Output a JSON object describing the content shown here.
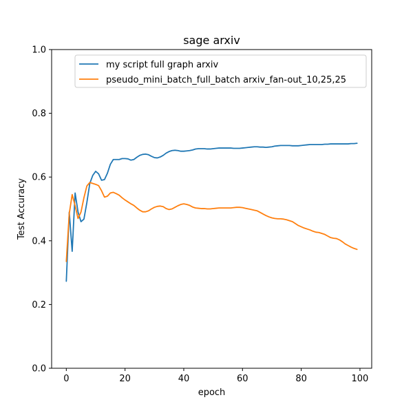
{
  "chart_data": {
    "type": "line",
    "title": "sage arxiv",
    "xlabel": "epoch",
    "ylabel": "Test Accuracy",
    "xlim": [
      -5,
      104
    ],
    "ylim": [
      0.0,
      1.0
    ],
    "xticks": [
      0,
      20,
      40,
      60,
      80,
      100
    ],
    "xtick_labels": [
      "0",
      "20",
      "40",
      "60",
      "80",
      "100"
    ],
    "yticks": [
      0.0,
      0.2,
      0.4,
      0.6,
      0.8,
      1.0
    ],
    "ytick_labels": [
      "0.0",
      "0.2",
      "0.4",
      "0.6",
      "0.8",
      "1.0"
    ],
    "grid": false,
    "legend_position": "top-right",
    "series": [
      {
        "name": "my script full graph arxiv",
        "color": "#1f77b4",
        "x": [
          0,
          1,
          2,
          3,
          4,
          5,
          6,
          7,
          8,
          9,
          10,
          11,
          12,
          13,
          14,
          15,
          16,
          17,
          18,
          19,
          20,
          21,
          22,
          23,
          24,
          25,
          26,
          27,
          28,
          29,
          30,
          31,
          32,
          33,
          34,
          35,
          36,
          37,
          38,
          39,
          40,
          41,
          42,
          43,
          44,
          45,
          46,
          47,
          48,
          49,
          50,
          51,
          52,
          53,
          54,
          55,
          56,
          57,
          58,
          59,
          60,
          61,
          62,
          63,
          64,
          65,
          66,
          67,
          68,
          69,
          70,
          71,
          72,
          73,
          74,
          75,
          76,
          77,
          78,
          79,
          80,
          81,
          82,
          83,
          84,
          85,
          86,
          87,
          88,
          89,
          90,
          91,
          92,
          93,
          94,
          95,
          96,
          97,
          98,
          99
        ],
        "y": [
          0.273,
          0.49,
          0.367,
          0.55,
          0.49,
          0.46,
          0.468,
          0.52,
          0.58,
          0.605,
          0.618,
          0.61,
          0.59,
          0.592,
          0.612,
          0.64,
          0.655,
          0.655,
          0.655,
          0.658,
          0.658,
          0.657,
          0.653,
          0.655,
          0.662,
          0.668,
          0.671,
          0.672,
          0.67,
          0.665,
          0.661,
          0.66,
          0.663,
          0.668,
          0.675,
          0.68,
          0.683,
          0.684,
          0.683,
          0.681,
          0.681,
          0.682,
          0.683,
          0.685,
          0.688,
          0.689,
          0.689,
          0.689,
          0.688,
          0.688,
          0.689,
          0.69,
          0.691,
          0.691,
          0.691,
          0.691,
          0.691,
          0.69,
          0.69,
          0.69,
          0.691,
          0.692,
          0.693,
          0.694,
          0.695,
          0.695,
          0.694,
          0.694,
          0.693,
          0.694,
          0.695,
          0.697,
          0.698,
          0.699,
          0.699,
          0.699,
          0.699,
          0.698,
          0.698,
          0.698,
          0.699,
          0.7,
          0.701,
          0.702,
          0.702,
          0.702,
          0.702,
          0.702,
          0.703,
          0.703,
          0.704,
          0.704,
          0.704,
          0.704,
          0.704,
          0.704,
          0.704,
          0.705,
          0.705,
          0.706
        ]
      },
      {
        "name": "pseudo_mini_batch_full_batch arxiv_fan-out_10,25,25",
        "color": "#ff7f0e",
        "x": [
          0,
          1,
          2,
          3,
          4,
          5,
          6,
          7,
          8,
          9,
          10,
          11,
          12,
          13,
          14,
          15,
          16,
          17,
          18,
          19,
          20,
          21,
          22,
          23,
          24,
          25,
          26,
          27,
          28,
          29,
          30,
          31,
          32,
          33,
          34,
          35,
          36,
          37,
          38,
          39,
          40,
          41,
          42,
          43,
          44,
          45,
          46,
          47,
          48,
          49,
          50,
          51,
          52,
          53,
          54,
          55,
          56,
          57,
          58,
          59,
          60,
          61,
          62,
          63,
          64,
          65,
          66,
          67,
          68,
          69,
          70,
          71,
          72,
          73,
          74,
          75,
          76,
          77,
          78,
          79,
          80,
          81,
          82,
          83,
          84,
          85,
          86,
          87,
          88,
          89,
          90,
          91,
          92,
          93,
          94,
          95,
          96,
          97,
          98,
          99
        ],
        "y": [
          0.335,
          0.485,
          0.545,
          0.51,
          0.47,
          0.49,
          0.535,
          0.572,
          0.583,
          0.58,
          0.577,
          0.573,
          0.557,
          0.537,
          0.54,
          0.55,
          0.552,
          0.548,
          0.543,
          0.535,
          0.528,
          0.522,
          0.516,
          0.511,
          0.503,
          0.496,
          0.491,
          0.491,
          0.494,
          0.5,
          0.505,
          0.508,
          0.509,
          0.507,
          0.501,
          0.498,
          0.5,
          0.505,
          0.51,
          0.514,
          0.516,
          0.514,
          0.511,
          0.506,
          0.503,
          0.502,
          0.501,
          0.501,
          0.5,
          0.5,
          0.501,
          0.502,
          0.503,
          0.503,
          0.503,
          0.503,
          0.503,
          0.504,
          0.505,
          0.505,
          0.504,
          0.502,
          0.5,
          0.498,
          0.496,
          0.494,
          0.489,
          0.484,
          0.479,
          0.475,
          0.472,
          0.47,
          0.469,
          0.469,
          0.468,
          0.466,
          0.463,
          0.46,
          0.454,
          0.448,
          0.444,
          0.44,
          0.437,
          0.434,
          0.43,
          0.427,
          0.426,
          0.423,
          0.42,
          0.415,
          0.41,
          0.408,
          0.407,
          0.403,
          0.397,
          0.39,
          0.385,
          0.38,
          0.376,
          0.373
        ]
      }
    ]
  }
}
